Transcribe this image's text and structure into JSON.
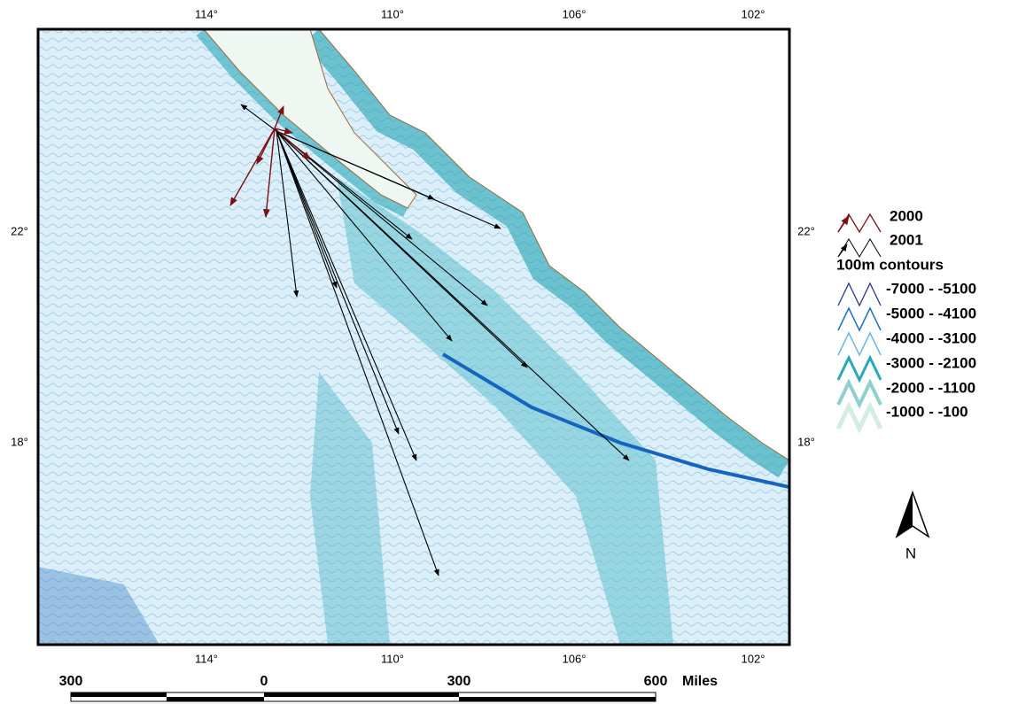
{
  "axes": {
    "top": [
      "114°",
      "110°",
      "106°",
      "102°"
    ],
    "bottom": [
      "114°",
      "110°",
      "106°",
      "102°"
    ],
    "left": [
      "22°",
      "18°"
    ],
    "right": [
      "22°",
      "18°"
    ]
  },
  "legend": {
    "years": [
      "2000",
      "2001"
    ],
    "contours_title": "100m contours",
    "contours": [
      "-7000 - -5100",
      "-5000 - -4100",
      "-4000 - -3100",
      "-3000 - -2100",
      "-2000 - -1100",
      "-1000 - -100"
    ]
  },
  "scale": {
    "labels": [
      "300",
      "0",
      "300",
      "600"
    ],
    "unit": "Miles"
  },
  "north": "N"
}
